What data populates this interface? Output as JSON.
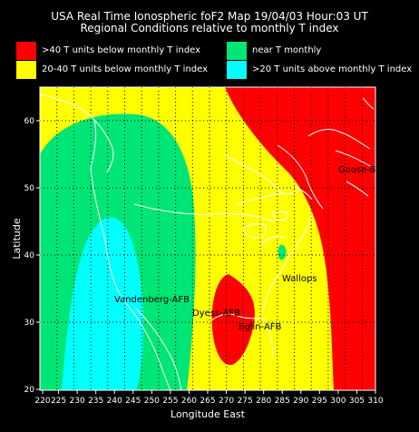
{
  "header": {
    "title": "USA Real Time Ionospheric foF2 Map  19/04/03 Hour:03 UT",
    "subtitle": "Regional Conditions relative to monthly T index"
  },
  "legend": [
    {
      "label": ">40 T units below monthly T index",
      "color": "#ff0000"
    },
    {
      "label": "near T monthly",
      "color": "#00e676"
    },
    {
      "label": "20-40 T units below monthly T index",
      "color": "#ffff00"
    },
    {
      "label": ">20 T units above monthly T index",
      "color": "#00ffff"
    }
  ],
  "axes": {
    "xlabel": "Longitude East",
    "ylabel": "Latitude",
    "xticks": [
      "220",
      "225",
      "230",
      "235",
      "240",
      "245",
      "250",
      "255",
      "260",
      "265",
      "270",
      "275",
      "280",
      "285",
      "290",
      "295",
      "300",
      "305",
      "310"
    ],
    "yticks": [
      "60",
      "50",
      "40",
      "30",
      "20"
    ]
  },
  "stations": [
    {
      "name": "Goose-B"
    },
    {
      "name": "Wallops"
    },
    {
      "name": "Vandenberg-AFB"
    },
    {
      "name": "Dyess-AFB"
    },
    {
      "name": "Eglin-AFB"
    }
  ],
  "colors": {
    "red": "#ff0000",
    "yellow": "#ffff00",
    "green": "#00e676",
    "cyan": "#00ffff",
    "coast": "#ffffff",
    "grid": "#000000"
  }
}
